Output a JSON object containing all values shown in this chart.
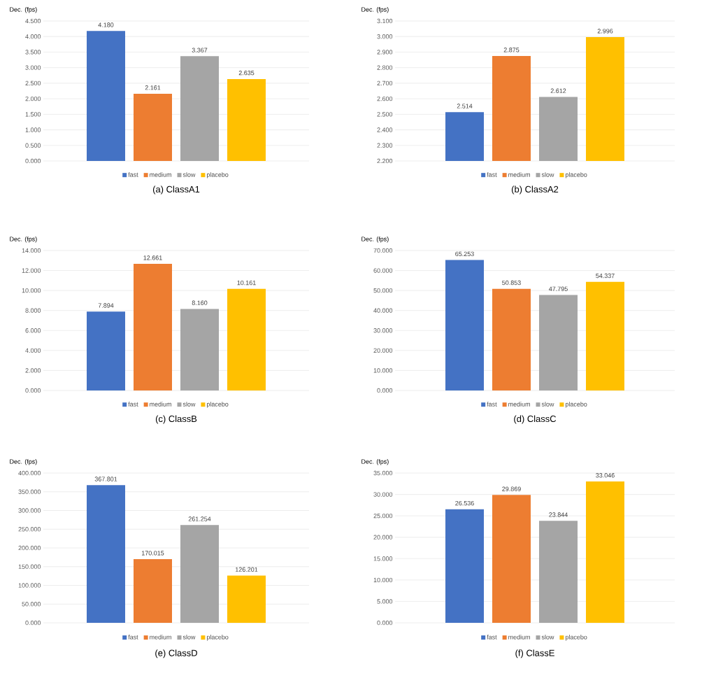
{
  "chart_data": [
    {
      "type": "bar",
      "title": "(a)  ClassA1",
      "ylabel": "Dec. (fps)",
      "categories": [
        null
      ],
      "legend": "bottom",
      "grid": "y",
      "ylim": [
        0,
        4.5
      ],
      "yticks": [
        {
          "value": 0,
          "label": "0.000"
        },
        {
          "value": 0.5,
          "label": "0.500"
        },
        {
          "value": 1,
          "label": "1.000"
        },
        {
          "value": 1.5,
          "label": "1.500"
        },
        {
          "value": 2,
          "label": "2.000"
        },
        {
          "value": 2.5,
          "label": "2.500"
        },
        {
          "value": 3,
          "label": "3.000"
        },
        {
          "value": 3.5,
          "label": "3.500"
        },
        {
          "value": 4,
          "label": "4.000"
        },
        {
          "value": 4.5,
          "label": "4.500"
        }
      ],
      "series": [
        {
          "name": "fast",
          "color": "#4472c4",
          "values": [
            4.18
          ],
          "value_labels": [
            "4.180"
          ]
        },
        {
          "name": "medium",
          "color": "#ed7d31",
          "values": [
            2.161
          ],
          "value_labels": [
            "2.161"
          ]
        },
        {
          "name": "slow",
          "color": "#a5a5a5",
          "values": [
            3.367
          ],
          "value_labels": [
            "3.367"
          ]
        },
        {
          "name": "placebo",
          "color": "#ffc000",
          "values": [
            2.635
          ],
          "value_labels": [
            "2.635"
          ]
        }
      ]
    },
    {
      "type": "bar",
      "title": "(b)  ClassA2",
      "ylabel": "Dec. (fps)",
      "categories": [
        null
      ],
      "legend": "bottom",
      "grid": "y",
      "ylim": [
        2.2,
        3.1
      ],
      "yticks": [
        {
          "value": 2.2,
          "label": "2.200"
        },
        {
          "value": 2.3,
          "label": "2.300"
        },
        {
          "value": 2.4,
          "label": "2.400"
        },
        {
          "value": 2.5,
          "label": "2.500"
        },
        {
          "value": 2.6,
          "label": "2.600"
        },
        {
          "value": 2.7,
          "label": "2.700"
        },
        {
          "value": 2.8,
          "label": "2.800"
        },
        {
          "value": 2.9,
          "label": "2.900"
        },
        {
          "value": 3.0,
          "label": "3.000"
        },
        {
          "value": 3.1,
          "label": "3.100"
        }
      ],
      "series": [
        {
          "name": "fast",
          "color": "#4472c4",
          "values": [
            2.514
          ],
          "value_labels": [
            "2.514"
          ]
        },
        {
          "name": "medium",
          "color": "#ed7d31",
          "values": [
            2.875
          ],
          "value_labels": [
            "2.875"
          ]
        },
        {
          "name": "slow",
          "color": "#a5a5a5",
          "values": [
            2.612
          ],
          "value_labels": [
            "2.612"
          ]
        },
        {
          "name": "placebo",
          "color": "#ffc000",
          "values": [
            2.996
          ],
          "value_labels": [
            "2.996"
          ]
        }
      ]
    },
    {
      "type": "bar",
      "title": "(c)  ClassB",
      "ylabel": "Dec. (fps)",
      "categories": [
        null
      ],
      "legend": "bottom",
      "grid": "y",
      "ylim": [
        0,
        14
      ],
      "yticks": [
        {
          "value": 0,
          "label": "0.000"
        },
        {
          "value": 2,
          "label": "2.000"
        },
        {
          "value": 4,
          "label": "4.000"
        },
        {
          "value": 6,
          "label": "6.000"
        },
        {
          "value": 8,
          "label": "8.000"
        },
        {
          "value": 10,
          "label": "10.000"
        },
        {
          "value": 12,
          "label": "12.000"
        },
        {
          "value": 14,
          "label": "14.000"
        }
      ],
      "series": [
        {
          "name": "fast",
          "color": "#4472c4",
          "values": [
            7.894
          ],
          "value_labels": [
            "7.894"
          ]
        },
        {
          "name": "medium",
          "color": "#ed7d31",
          "values": [
            12.661
          ],
          "value_labels": [
            "12.661"
          ]
        },
        {
          "name": "slow",
          "color": "#a5a5a5",
          "values": [
            8.16
          ],
          "value_labels": [
            "8.160"
          ]
        },
        {
          "name": "placebo",
          "color": "#ffc000",
          "values": [
            10.161
          ],
          "value_labels": [
            "10.161"
          ]
        }
      ]
    },
    {
      "type": "bar",
      "title": "(d)  ClassC",
      "ylabel": "Dec. (fps)",
      "categories": [
        null
      ],
      "legend": "bottom",
      "grid": "y",
      "ylim": [
        0,
        70
      ],
      "yticks": [
        {
          "value": 0,
          "label": "0.000"
        },
        {
          "value": 10,
          "label": "10.000"
        },
        {
          "value": 20,
          "label": "20.000"
        },
        {
          "value": 30,
          "label": "30.000"
        },
        {
          "value": 40,
          "label": "40.000"
        },
        {
          "value": 50,
          "label": "50.000"
        },
        {
          "value": 60,
          "label": "60.000"
        },
        {
          "value": 70,
          "label": "70.000"
        }
      ],
      "series": [
        {
          "name": "fast",
          "color": "#4472c4",
          "values": [
            65.253
          ],
          "value_labels": [
            "65.253"
          ]
        },
        {
          "name": "medium",
          "color": "#ed7d31",
          "values": [
            50.853
          ],
          "value_labels": [
            "50.853"
          ]
        },
        {
          "name": "slow",
          "color": "#a5a5a5",
          "values": [
            47.795
          ],
          "value_labels": [
            "47.795"
          ]
        },
        {
          "name": "placebo",
          "color": "#ffc000",
          "values": [
            54.337
          ],
          "value_labels": [
            "54.337"
          ]
        }
      ]
    },
    {
      "type": "bar",
      "title": "(e)  ClassD",
      "ylabel": "Dec. (fps)",
      "categories": [
        null
      ],
      "legend": "bottom",
      "grid": "y",
      "ylim": [
        0,
        400
      ],
      "yticks": [
        {
          "value": 0,
          "label": "0.000"
        },
        {
          "value": 50,
          "label": "50.000"
        },
        {
          "value": 100,
          "label": "100.000"
        },
        {
          "value": 150,
          "label": "150.000"
        },
        {
          "value": 200,
          "label": "200.000"
        },
        {
          "value": 250,
          "label": "250.000"
        },
        {
          "value": 300,
          "label": "300.000"
        },
        {
          "value": 350,
          "label": "350.000"
        },
        {
          "value": 400,
          "label": "400.000"
        }
      ],
      "series": [
        {
          "name": "fast",
          "color": "#4472c4",
          "values": [
            367.801
          ],
          "value_labels": [
            "367.801"
          ]
        },
        {
          "name": "medium",
          "color": "#ed7d31",
          "values": [
            170.015
          ],
          "value_labels": [
            "170.015"
          ]
        },
        {
          "name": "slow",
          "color": "#a5a5a5",
          "values": [
            261.254
          ],
          "value_labels": [
            "261.254"
          ]
        },
        {
          "name": "placebo",
          "color": "#ffc000",
          "values": [
            126.201
          ],
          "value_labels": [
            "126.201"
          ]
        }
      ]
    },
    {
      "type": "bar",
      "title": "(f)  ClassE",
      "ylabel": "Dec. (fps)",
      "categories": [
        null
      ],
      "legend": "bottom",
      "grid": "y",
      "ylim": [
        0,
        35
      ],
      "yticks": [
        {
          "value": 0,
          "label": "0.000"
        },
        {
          "value": 5,
          "label": "5.000"
        },
        {
          "value": 10,
          "label": "10.000"
        },
        {
          "value": 15,
          "label": "15.000"
        },
        {
          "value": 20,
          "label": "20.000"
        },
        {
          "value": 25,
          "label": "25.000"
        },
        {
          "value": 30,
          "label": "30.000"
        },
        {
          "value": 35,
          "label": "35.000"
        }
      ],
      "series": [
        {
          "name": "fast",
          "color": "#4472c4",
          "values": [
            26.536
          ],
          "value_labels": [
            "26.536"
          ]
        },
        {
          "name": "medium",
          "color": "#ed7d31",
          "values": [
            29.869
          ],
          "value_labels": [
            "29.869"
          ]
        },
        {
          "name": "slow",
          "color": "#a5a5a5",
          "values": [
            23.844
          ],
          "value_labels": [
            "23.844"
          ]
        },
        {
          "name": "placebo",
          "color": "#ffc000",
          "values": [
            33.046
          ],
          "value_labels": [
            "33.046"
          ]
        }
      ]
    }
  ]
}
